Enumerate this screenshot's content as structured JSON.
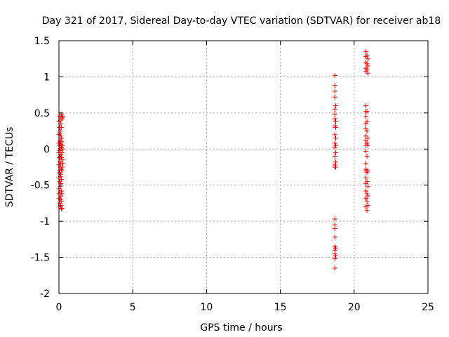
{
  "chart_data": {
    "type": "scatter",
    "title": "Day 321 of 2017, Sidereal Day-to-day VTEC variation (SDTVAR) for receiver ab18",
    "xlabel": "GPS time / hours",
    "ylabel": "SDTVAR / TECUs",
    "xlim": [
      0,
      25
    ],
    "ylim": [
      -2,
      1.5
    ],
    "xticks": [
      0,
      5,
      10,
      15,
      20,
      25
    ],
    "xtick_labels": [
      "0",
      "5",
      "10",
      "15",
      "20",
      "25"
    ],
    "yticks": [
      -2,
      -1.5,
      -1,
      -0.5,
      0,
      0.5,
      1,
      1.5
    ],
    "ytick_labels": [
      "-2",
      "-1.5",
      "-1",
      "-0.5",
      "0",
      "0.5",
      "1",
      "1.5"
    ],
    "grid": true,
    "marker": "+",
    "marker_color": "#ff0000",
    "series": [
      {
        "name": "SDTVAR",
        "points": [
          [
            0.0,
            0.38
          ],
          [
            0.0,
            0.2
          ],
          [
            0.0,
            0.08
          ],
          [
            0.0,
            -0.05
          ],
          [
            0.0,
            -0.22
          ],
          [
            0.0,
            -0.4
          ],
          [
            0.0,
            -0.55
          ],
          [
            0.0,
            -0.62
          ],
          [
            0.03,
            0.3
          ],
          [
            0.03,
            0.05
          ],
          [
            0.03,
            -0.12
          ],
          [
            0.03,
            -0.33
          ],
          [
            0.03,
            -0.68
          ],
          [
            0.07,
            0.45
          ],
          [
            0.07,
            0.22
          ],
          [
            0.07,
            0.1
          ],
          [
            0.07,
            -0.02
          ],
          [
            0.07,
            -0.18
          ],
          [
            0.07,
            -0.3
          ],
          [
            0.07,
            -0.45
          ],
          [
            0.07,
            -0.6
          ],
          [
            0.07,
            -0.75
          ],
          [
            0.1,
            0.4
          ],
          [
            0.1,
            0.25
          ],
          [
            0.1,
            0.12
          ],
          [
            0.1,
            0.0
          ],
          [
            0.1,
            -0.1
          ],
          [
            0.1,
            -0.25
          ],
          [
            0.1,
            -0.38
          ],
          [
            0.1,
            -0.52
          ],
          [
            0.1,
            -0.7
          ],
          [
            0.1,
            -0.8
          ],
          [
            0.13,
            0.35
          ],
          [
            0.13,
            0.18
          ],
          [
            0.13,
            0.06
          ],
          [
            0.13,
            -0.08
          ],
          [
            0.13,
            -0.2
          ],
          [
            0.13,
            -0.35
          ],
          [
            0.13,
            -0.48
          ],
          [
            0.13,
            -0.65
          ],
          [
            0.13,
            -0.78
          ],
          [
            0.17,
            0.48
          ],
          [
            0.17,
            0.3
          ],
          [
            0.17,
            0.15
          ],
          [
            0.17,
            0.02
          ],
          [
            0.17,
            -0.12
          ],
          [
            0.17,
            -0.28
          ],
          [
            0.17,
            -0.42
          ],
          [
            0.17,
            -0.58
          ],
          [
            0.17,
            -0.72
          ],
          [
            0.17,
            -0.83
          ],
          [
            0.2,
            0.44
          ],
          [
            0.2,
            0.1
          ],
          [
            0.2,
            -0.05
          ],
          [
            0.2,
            -0.3
          ],
          [
            0.2,
            -0.62
          ],
          [
            0.2,
            -0.82
          ],
          [
            0.23,
            0.42
          ],
          [
            0.23,
            0.05
          ],
          [
            0.23,
            -0.15
          ],
          [
            0.23,
            -0.25
          ],
          [
            0.27,
            0.45
          ],
          [
            0.27,
            0.0
          ],
          [
            0.27,
            -0.2
          ],
          [
            18.7,
            1.02
          ],
          [
            18.7,
            0.88
          ],
          [
            18.7,
            0.8
          ],
          [
            18.7,
            0.72
          ],
          [
            18.7,
            0.55
          ],
          [
            18.7,
            0.48
          ],
          [
            18.7,
            0.42
          ],
          [
            18.7,
            0.32
          ],
          [
            18.7,
            0.2
          ],
          [
            18.7,
            0.08
          ],
          [
            18.7,
            0.02
          ],
          [
            18.7,
            -0.1
          ],
          [
            18.7,
            -0.22
          ],
          [
            18.7,
            -0.25
          ],
          [
            18.7,
            -0.97
          ],
          [
            18.7,
            -1.05
          ],
          [
            18.7,
            -1.1
          ],
          [
            18.7,
            -1.22
          ],
          [
            18.7,
            -1.35
          ],
          [
            18.7,
            -1.4
          ],
          [
            18.7,
            -1.45
          ],
          [
            18.7,
            -1.52
          ],
          [
            18.7,
            -1.65
          ],
          [
            18.75,
            0.6
          ],
          [
            18.75,
            0.38
          ],
          [
            18.75,
            0.3
          ],
          [
            18.75,
            0.15
          ],
          [
            18.75,
            0.05
          ],
          [
            18.75,
            -0.05
          ],
          [
            18.75,
            -0.18
          ],
          [
            18.75,
            -0.25
          ],
          [
            18.75,
            -1.37
          ],
          [
            18.75,
            -1.48
          ],
          [
            20.8,
            1.35
          ],
          [
            20.8,
            1.28
          ],
          [
            20.8,
            1.2
          ],
          [
            20.8,
            1.12
          ],
          [
            20.8,
            1.08
          ],
          [
            20.8,
            0.6
          ],
          [
            20.8,
            0.52
          ],
          [
            20.8,
            0.45
          ],
          [
            20.8,
            0.35
          ],
          [
            20.8,
            0.28
          ],
          [
            20.8,
            0.18
          ],
          [
            20.8,
            0.12
          ],
          [
            20.8,
            0.05
          ],
          [
            20.8,
            -0.03
          ],
          [
            20.8,
            -0.2
          ],
          [
            20.8,
            -0.28
          ],
          [
            20.8,
            -0.3
          ],
          [
            20.8,
            -0.4
          ],
          [
            20.8,
            -0.48
          ],
          [
            20.8,
            -0.58
          ],
          [
            20.8,
            -0.68
          ],
          [
            20.8,
            -0.8
          ],
          [
            20.87,
            1.3
          ],
          [
            20.87,
            1.18
          ],
          [
            20.87,
            1.1
          ],
          [
            20.87,
            0.52
          ],
          [
            20.87,
            0.38
          ],
          [
            20.87,
            0.25
          ],
          [
            20.87,
            0.08
          ],
          [
            20.87,
            -0.1
          ],
          [
            20.87,
            -0.32
          ],
          [
            20.87,
            -0.45
          ],
          [
            20.87,
            -0.62
          ],
          [
            20.87,
            -0.72
          ],
          [
            20.87,
            -0.85
          ],
          [
            20.93,
            1.25
          ],
          [
            20.93,
            1.15
          ],
          [
            20.93,
            1.05
          ],
          [
            20.93,
            0.15
          ],
          [
            20.93,
            0.05
          ],
          [
            20.93,
            -0.3
          ],
          [
            20.93,
            -0.52
          ],
          [
            20.93,
            -0.65
          ],
          [
            20.93,
            -0.78
          ]
        ]
      }
    ]
  }
}
